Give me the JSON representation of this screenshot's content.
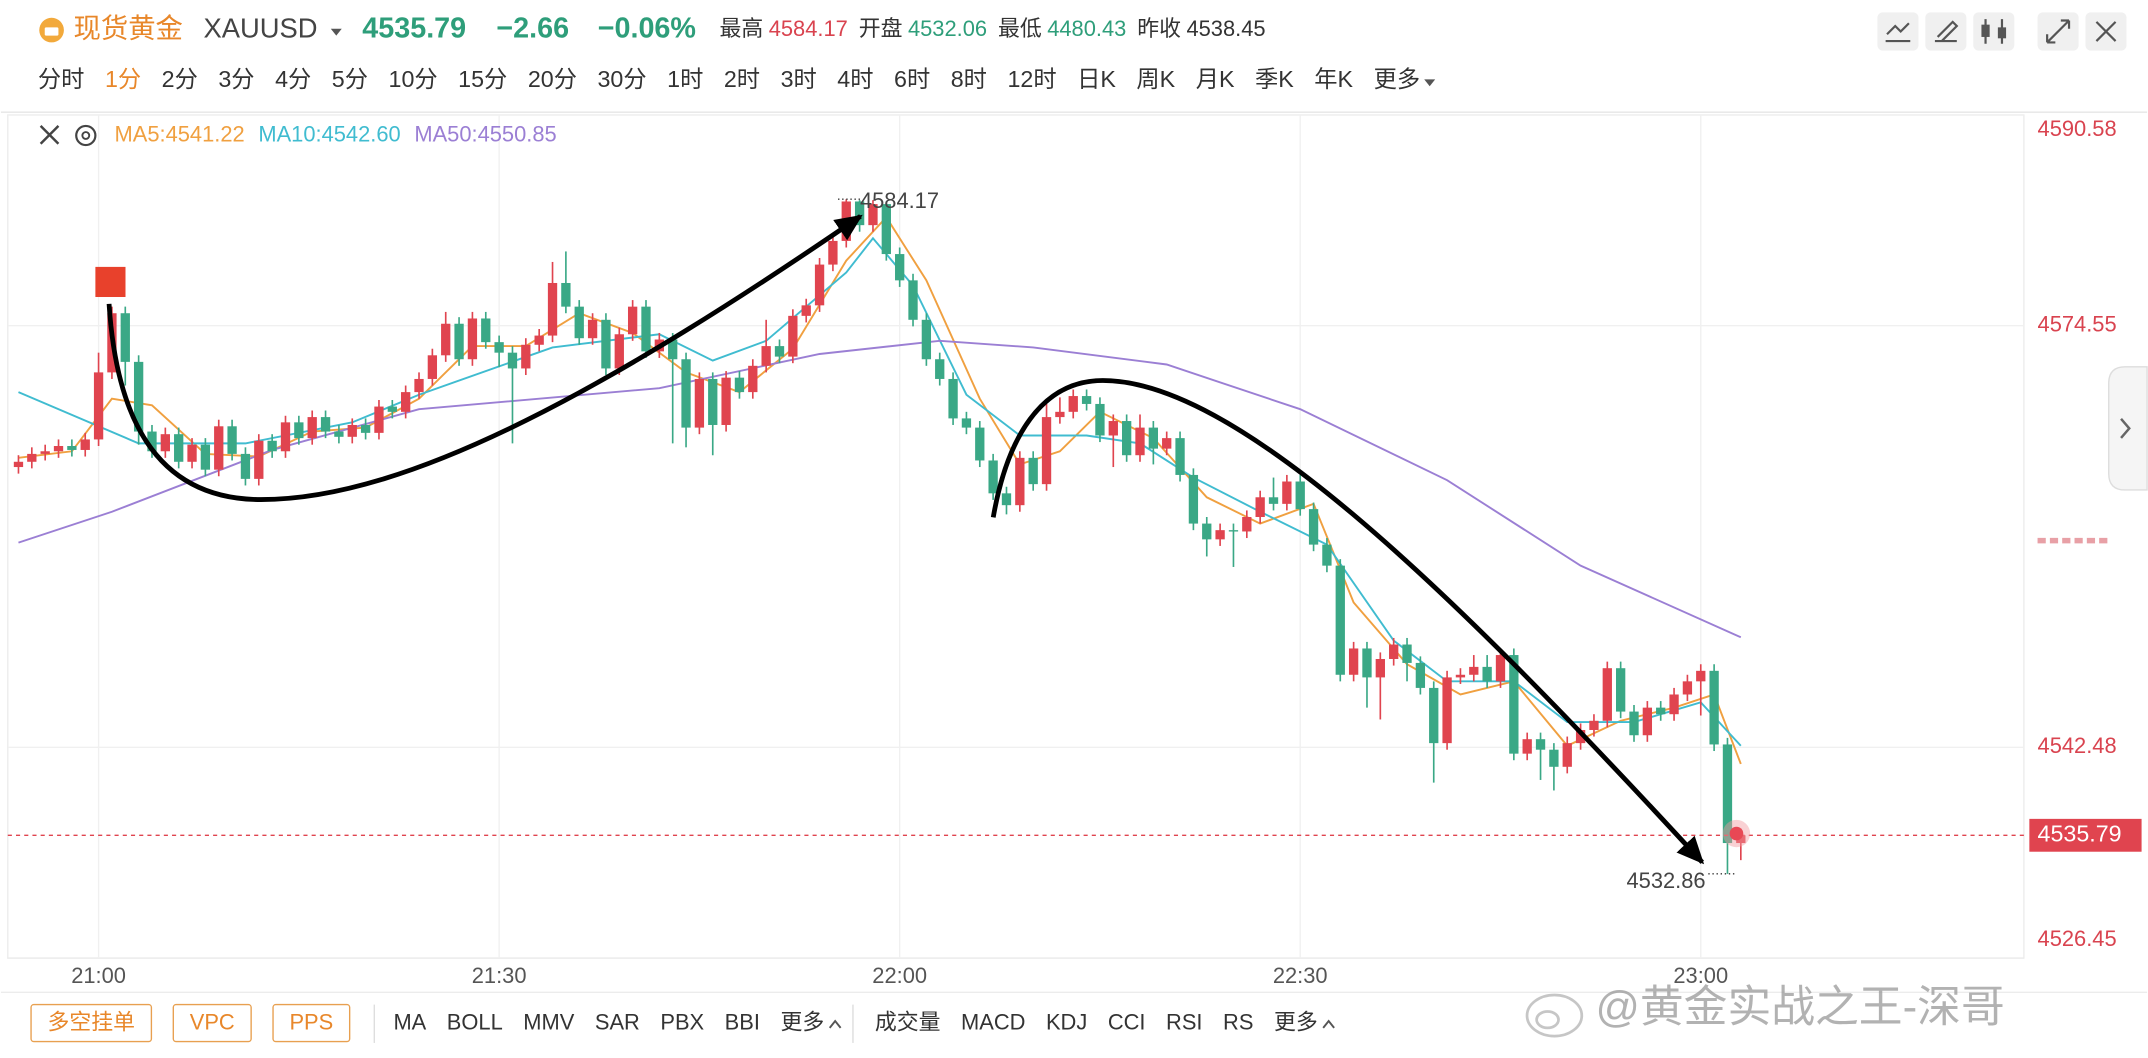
{
  "header": {
    "name": "现货黄金",
    "symbol": "XAUUSD",
    "price": "4535.79",
    "change": "−2.66",
    "change_pct": "−0.06%",
    "stats": [
      {
        "label": "最高",
        "value": "4584.17",
        "color": "#d9434f"
      },
      {
        "label": "开盘",
        "value": "4532.06",
        "color": "#2e9e7a"
      },
      {
        "label": "最低",
        "value": "4480.43",
        "color": "#2e9e7a"
      },
      {
        "label": "昨收",
        "value": "4538.45",
        "color": "#333333"
      }
    ]
  },
  "periods": [
    "分时",
    "1分",
    "2分",
    "3分",
    "4分",
    "5分",
    "10分",
    "15分",
    "20分",
    "30分",
    "1时",
    "2时",
    "3时",
    "4时",
    "6时",
    "8时",
    "12时",
    "日K",
    "周K",
    "月K",
    "季K",
    "年K",
    "更多"
  ],
  "active_period": 1,
  "toolbar": {
    "orders": [
      "多空挂单",
      "VPC",
      "PPS"
    ],
    "main_indicators": [
      "MA",
      "BOLL",
      "MMV",
      "SAR",
      "PBX",
      "BBI",
      "更多"
    ],
    "sub_indicators": [
      "成交量",
      "MACD",
      "KDJ",
      "CCI",
      "RSI",
      "RS",
      "更多"
    ]
  },
  "watermark": "@黄金实战之王-深哥",
  "chart_data": {
    "type": "candlestick",
    "up_color": "#e0444f",
    "down_color": "#3aa886",
    "grid": true,
    "xlim": [
      -0.8,
      150.2
    ],
    "xticks": [
      {
        "value": 6,
        "label": "21:00"
      },
      {
        "value": 36,
        "label": "21:30"
      },
      {
        "value": 66,
        "label": "22:00"
      },
      {
        "value": 96,
        "label": "22:30"
      },
      {
        "value": 126,
        "label": "23:00"
      }
    ],
    "ylim": [
      4526.45,
      4590.58
    ],
    "yticks": [
      4526.45,
      4542.48,
      4574.55,
      4590.58
    ],
    "open": [
      4563.8,
      4564.2,
      4564.8,
      4565.0,
      4565.4,
      4565.1,
      4565.9,
      4571.0,
      4575.5,
      4571.8,
      4566.5,
      4565.0,
      4566.3,
      4564.2,
      4565.5,
      4563.6,
      4566.9,
      4564.8,
      4562.9,
      4565.8,
      4565.0,
      4567.2,
      4566.0,
      4567.6,
      4566.5,
      4566.1,
      4567.0,
      4566.4,
      4568.4,
      4568.0,
      4569.5,
      4570.5,
      4572.3,
      4574.7,
      4572.0,
      4575.1,
      4573.3,
      4572.5,
      4571.3,
      4573.1,
      4573.8,
      4577.8,
      4576.0,
      4573.6,
      4575.0,
      4571.3,
      4573.9,
      4576.0,
      4572.6,
      4573.5,
      4572.0,
      4566.8,
      4570.5,
      4567.0,
      4570.6,
      4569.5,
      4571.5,
      4573.0,
      4572.2,
      4575.3,
      4576.1,
      4579.2,
      4581.0,
      4584.0,
      4582.2,
      4583.8,
      4580.0,
      4578.0,
      4575.0,
      4572.0,
      4570.5,
      4567.5,
      4566.8,
      4564.3,
      4561.8,
      4560.9,
      4564.5,
      4562.5,
      4567.6,
      4568.0,
      4569.2,
      4568.6,
      4566.2,
      4567.3,
      4564.7,
      4566.8,
      4565.2,
      4566.0,
      4563.2,
      4559.5,
      4558.3,
      4559.0,
      4558.9,
      4560.0,
      4561.5,
      4561.0,
      4562.7,
      4560.6,
      4557.9,
      4556.3,
      4548.0,
      4550.0,
      4547.8,
      4549.2,
      4550.3,
      4548.9,
      4547.0,
      4542.8,
      4547.8,
      4548.0,
      4548.6,
      4547.5,
      4549.5,
      4542.0,
      4543.1,
      4542.3,
      4541.0,
      4542.8,
      4543.8,
      4544.5,
      4548.5,
      4545.2,
      4543.4,
      4545.5,
      4545.0,
      4546.5,
      4547.5,
      4548.3,
      4542.7,
      4535.2
    ],
    "high": [
      4564.7,
      4565.3,
      4565.5,
      4565.9,
      4565.9,
      4566.4,
      4572.5,
      4576.0,
      4576.0,
      4572.3,
      4567.0,
      4566.8,
      4566.8,
      4566.0,
      4566.0,
      4567.4,
      4567.4,
      4565.3,
      4566.3,
      4566.3,
      4567.7,
      4567.7,
      4568.1,
      4568.1,
      4567.0,
      4567.5,
      4567.5,
      4568.9,
      4568.9,
      4570.0,
      4571.0,
      4572.8,
      4575.6,
      4575.2,
      4575.6,
      4575.6,
      4573.8,
      4573.0,
      4573.6,
      4574.3,
      4579.4,
      4580.2,
      4576.5,
      4575.5,
      4575.5,
      4574.4,
      4576.5,
      4576.5,
      4574.0,
      4574.0,
      4572.5,
      4571.0,
      4571.0,
      4571.1,
      4571.1,
      4572.0,
      4575.0,
      4573.5,
      4575.8,
      4576.6,
      4579.7,
      4581.5,
      4584.17,
      4584.1,
      4584.1,
      4584.0,
      4580.5,
      4578.5,
      4575.5,
      4572.5,
      4571.0,
      4568.0,
      4567.3,
      4564.8,
      4562.3,
      4565.0,
      4565.0,
      4568.6,
      4569.1,
      4569.7,
      4569.7,
      4569.1,
      4567.8,
      4567.8,
      4567.8,
      4567.3,
      4566.5,
      4566.5,
      4563.7,
      4560.0,
      4559.5,
      4559.5,
      4560.5,
      4562.0,
      4563.0,
      4563.2,
      4563.2,
      4561.1,
      4558.4,
      4556.8,
      4550.5,
      4550.5,
      4549.7,
      4550.8,
      4550.8,
      4549.4,
      4547.5,
      4548.3,
      4548.5,
      4549.5,
      4549.5,
      4550.0,
      4550.0,
      4543.6,
      4543.6,
      4542.8,
      4543.3,
      4544.3,
      4545.0,
      4549.0,
      4549.0,
      4545.7,
      4546.0,
      4546.0,
      4547.0,
      4548.0,
      4548.8,
      4548.8,
      4543.2,
      4536.3
    ],
    "low": [
      4563.3,
      4563.7,
      4564.3,
      4564.5,
      4564.6,
      4564.6,
      4565.4,
      4570.5,
      4570.0,
      4565.5,
      4564.5,
      4564.5,
      4563.7,
      4563.7,
      4563.1,
      4563.1,
      4564.3,
      4562.4,
      4562.4,
      4564.5,
      4564.5,
      4565.5,
      4565.5,
      4566.0,
      4565.6,
      4565.6,
      4565.9,
      4565.9,
      4567.5,
      4567.5,
      4569.0,
      4570.0,
      4571.8,
      4571.5,
      4571.5,
      4572.8,
      4571.4,
      4565.6,
      4570.8,
      4572.6,
      4573.3,
      4575.5,
      4573.1,
      4573.1,
      4570.8,
      4570.8,
      4573.4,
      4572.1,
      4572.1,
      4565.6,
      4565.3,
      4566.3,
      4564.7,
      4566.5,
      4569.0,
      4569.0,
      4571.0,
      4571.7,
      4571.7,
      4574.8,
      4575.6,
      4578.7,
      4580.5,
      4581.7,
      4581.7,
      4579.5,
      4577.5,
      4574.5,
      4571.5,
      4570.0,
      4567.0,
      4566.3,
      4563.8,
      4561.3,
      4560.2,
      4560.4,
      4562.0,
      4562.0,
      4567.1,
      4567.5,
      4568.1,
      4565.7,
      4563.8,
      4564.2,
      4564.2,
      4564.0,
      4564.7,
      4562.7,
      4559.0,
      4557.0,
      4557.8,
      4556.2,
      4558.4,
      4559.5,
      4560.5,
      4560.5,
      4560.1,
      4557.4,
      4555.8,
      4547.5,
      4547.5,
      4545.5,
      4544.6,
      4548.7,
      4547.5,
      4546.5,
      4539.8,
      4542.3,
      4547.3,
      4547.5,
      4547.0,
      4547.0,
      4541.5,
      4541.5,
      4540.0,
      4539.2,
      4540.5,
      4542.3,
      4543.3,
      4544.0,
      4544.7,
      4542.9,
      4542.9,
      4544.5,
      4544.5,
      4546.0,
      4544.9,
      4542.2,
      4532.86,
      4533.9
    ],
    "close": [
      4564.2,
      4564.8,
      4565.0,
      4565.4,
      4565.1,
      4565.9,
      4571.0,
      4575.5,
      4571.8,
      4566.5,
      4565.0,
      4566.3,
      4564.2,
      4565.5,
      4563.6,
      4566.9,
      4564.8,
      4562.9,
      4565.8,
      4565.0,
      4567.2,
      4566.0,
      4567.6,
      4566.5,
      4566.1,
      4567.0,
      4566.4,
      4568.4,
      4568.0,
      4569.5,
      4570.5,
      4572.3,
      4574.7,
      4572.0,
      4575.1,
      4573.3,
      4572.5,
      4571.3,
      4573.1,
      4573.8,
      4577.8,
      4576.0,
      4573.6,
      4575.0,
      4571.3,
      4573.9,
      4576.0,
      4572.6,
      4573.5,
      4572.0,
      4566.8,
      4570.5,
      4567.0,
      4570.6,
      4569.5,
      4571.5,
      4573.0,
      4572.2,
      4575.3,
      4576.1,
      4579.2,
      4581.0,
      4584.0,
      4582.2,
      4583.8,
      4580.0,
      4578.0,
      4575.0,
      4572.0,
      4570.5,
      4567.5,
      4566.8,
      4564.3,
      4561.8,
      4560.9,
      4564.5,
      4562.5,
      4567.6,
      4568.0,
      4569.2,
      4568.6,
      4566.2,
      4567.3,
      4564.7,
      4566.8,
      4565.2,
      4566.0,
      4563.2,
      4559.5,
      4558.3,
      4559.0,
      4558.9,
      4560.0,
      4561.5,
      4561.0,
      4562.7,
      4560.6,
      4557.9,
      4556.3,
      4548.0,
      4550.0,
      4547.8,
      4549.2,
      4550.3,
      4548.9,
      4547.0,
      4542.8,
      4547.8,
      4548.0,
      4548.6,
      4547.5,
      4549.5,
      4542.0,
      4543.1,
      4542.3,
      4541.0,
      4542.8,
      4543.8,
      4544.5,
      4548.5,
      4545.2,
      4543.4,
      4545.5,
      4545.0,
      4546.5,
      4547.5,
      4548.3,
      4542.7,
      4535.2,
      4535.79
    ],
    "lines": [
      {
        "name": "MA5",
        "label": "MA5:4541.22",
        "color": "#f0a040",
        "x": [
          0,
          4,
          7,
          10,
          14,
          18,
          22,
          26,
          30,
          34,
          38,
          42,
          46,
          50,
          54,
          58,
          62,
          65,
          68,
          72,
          75,
          78,
          81,
          85,
          89,
          93,
          97,
          100,
          104,
          108,
          112,
          116,
          120,
          124,
          127,
          129
        ],
        "values": [
          4564.5,
          4565.0,
          4569.0,
          4568.5,
          4564.8,
          4564.6,
          4566.5,
          4566.8,
          4569.0,
          4573.0,
          4573.0,
          4575.5,
          4574.0,
          4571.0,
          4569.5,
          4572.8,
          4579.5,
          4582.8,
          4578.0,
          4569.0,
          4564.0,
          4565.0,
          4568.0,
          4566.0,
          4561.5,
          4559.5,
          4561.0,
          4553.5,
          4548.8,
          4546.5,
          4547.5,
          4542.6,
          4544.5,
          4545.5,
          4546.5,
          4541.22
        ]
      },
      {
        "name": "MA10",
        "label": "MA10:4542.60",
        "color": "#40bcd0",
        "x": [
          0,
          9,
          17,
          25,
          30,
          40,
          48,
          52,
          56,
          62,
          64,
          67,
          71,
          75,
          80,
          84,
          88,
          93,
          98,
          103,
          107,
          112,
          116,
          121,
          126,
          129
        ],
        "values": [
          4569.5,
          4565.6,
          4565.6,
          4567.2,
          4569.3,
          4572.9,
          4573.9,
          4571.9,
          4573.4,
          4578.6,
          4581.2,
          4577.6,
          4569.3,
          4566.2,
          4566.2,
          4565.6,
          4563.0,
          4560.4,
          4557.9,
          4550.6,
          4547.5,
          4547.5,
          4544.4,
          4544.4,
          4545.9,
          4542.6
        ]
      },
      {
        "name": "MA50",
        "label": "MA50:4550.85",
        "color": "#9b7fd4",
        "x": [
          0,
          7,
          19,
          30,
          48,
          60,
          69,
          76,
          86,
          96,
          107,
          117,
          129
        ],
        "values": [
          4558.05,
          4560.4,
          4565.1,
          4568.2,
          4569.8,
          4572.4,
          4573.4,
          4572.9,
          4571.6,
          4568.2,
          4562.8,
          4556.3,
          4550.85
        ]
      }
    ],
    "last_price": 4535.79,
    "max_label": 4584.17,
    "min_label": 4532.86
  }
}
